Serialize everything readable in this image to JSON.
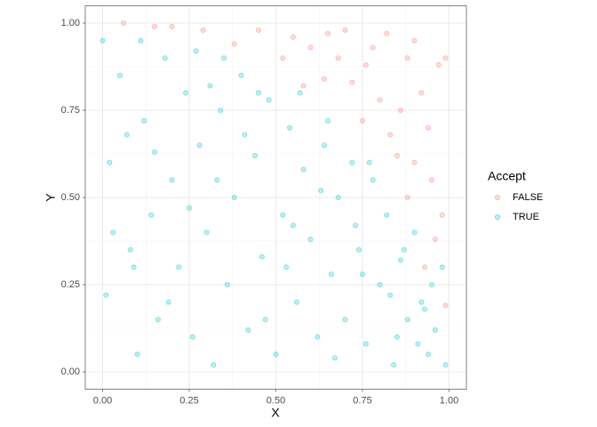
{
  "chart_data": {
    "type": "scatter",
    "x_label": "X",
    "y_label": "Y",
    "legend_title": "Accept",
    "legend": "right",
    "grid": true,
    "xlim": [
      -0.05,
      1.05
    ],
    "ylim": [
      -0.05,
      1.05
    ],
    "xticks": [
      {
        "value": 0,
        "label": "0.00"
      },
      {
        "value": 0.25,
        "label": "0.25"
      },
      {
        "value": 0.5,
        "label": "0.50"
      },
      {
        "value": 0.75,
        "label": "0.75"
      },
      {
        "value": 1,
        "label": "1.00"
      }
    ],
    "yticks": [
      {
        "value": 0,
        "label": "0.00"
      },
      {
        "value": 0.25,
        "label": "0.25"
      },
      {
        "value": 0.5,
        "label": "0.50"
      },
      {
        "value": 0.75,
        "label": "0.75"
      },
      {
        "value": 1,
        "label": "1.00"
      }
    ],
    "series": [
      {
        "name": "FALSE",
        "color": "#F8766D",
        "x": [
          0.06,
          0.15,
          0.2,
          0.29,
          0.38,
          0.45,
          0.52,
          0.55,
          0.6,
          0.64,
          0.68,
          0.7,
          0.72,
          0.75,
          0.78,
          0.8,
          0.83,
          0.86,
          0.88,
          0.9,
          0.92,
          0.95,
          0.97,
          0.99,
          0.98,
          0.96,
          0.99,
          0.93,
          0.85,
          0.65,
          0.58,
          0.82,
          0.9,
          0.94,
          0.76,
          0.88
        ],
        "y": [
          1.0,
          0.99,
          0.99,
          0.98,
          0.94,
          0.98,
          0.9,
          0.96,
          0.93,
          0.84,
          0.9,
          0.98,
          0.83,
          0.72,
          0.93,
          0.78,
          0.68,
          0.75,
          0.9,
          0.6,
          0.8,
          0.55,
          0.88,
          0.9,
          0.45,
          0.38,
          0.19,
          0.3,
          0.62,
          0.97,
          0.82,
          0.97,
          0.95,
          0.7,
          0.88,
          0.5
        ]
      },
      {
        "name": "TRUE",
        "color": "#00BFC4",
        "x": [
          0.0,
          0.01,
          0.02,
          0.05,
          0.08,
          0.1,
          0.12,
          0.14,
          0.16,
          0.18,
          0.2,
          0.22,
          0.24,
          0.26,
          0.28,
          0.3,
          0.32,
          0.34,
          0.36,
          0.38,
          0.4,
          0.42,
          0.44,
          0.46,
          0.48,
          0.5,
          0.52,
          0.54,
          0.56,
          0.58,
          0.6,
          0.62,
          0.64,
          0.66,
          0.68,
          0.7,
          0.72,
          0.74,
          0.76,
          0.78,
          0.8,
          0.82,
          0.84,
          0.86,
          0.88,
          0.9,
          0.92,
          0.94,
          0.96,
          0.98,
          0.03,
          0.07,
          0.11,
          0.19,
          0.27,
          0.33,
          0.41,
          0.47,
          0.53,
          0.57,
          0.63,
          0.67,
          0.73,
          0.77,
          0.83,
          0.87,
          0.91,
          0.93,
          0.15,
          0.25,
          0.35,
          0.45,
          0.55,
          0.65,
          0.75,
          0.85,
          0.95,
          0.99,
          0.09,
          0.31
        ],
        "y": [
          0.95,
          0.22,
          0.6,
          0.85,
          0.35,
          0.05,
          0.72,
          0.45,
          0.15,
          0.9,
          0.55,
          0.3,
          0.8,
          0.1,
          0.65,
          0.4,
          0.02,
          0.75,
          0.25,
          0.5,
          0.85,
          0.12,
          0.62,
          0.33,
          0.78,
          0.05,
          0.45,
          0.7,
          0.2,
          0.58,
          0.38,
          0.1,
          0.65,
          0.28,
          0.5,
          0.15,
          0.6,
          0.35,
          0.08,
          0.55,
          0.25,
          0.45,
          0.02,
          0.32,
          0.15,
          0.4,
          0.2,
          0.05,
          0.12,
          0.3,
          0.4,
          0.68,
          0.95,
          0.2,
          0.92,
          0.55,
          0.68,
          0.15,
          0.3,
          0.8,
          0.52,
          0.04,
          0.42,
          0.6,
          0.22,
          0.35,
          0.08,
          0.18,
          0.63,
          0.47,
          0.9,
          0.8,
          0.42,
          0.72,
          0.28,
          0.1,
          0.25,
          0.02,
          0.3,
          0.82
        ]
      }
    ]
  }
}
